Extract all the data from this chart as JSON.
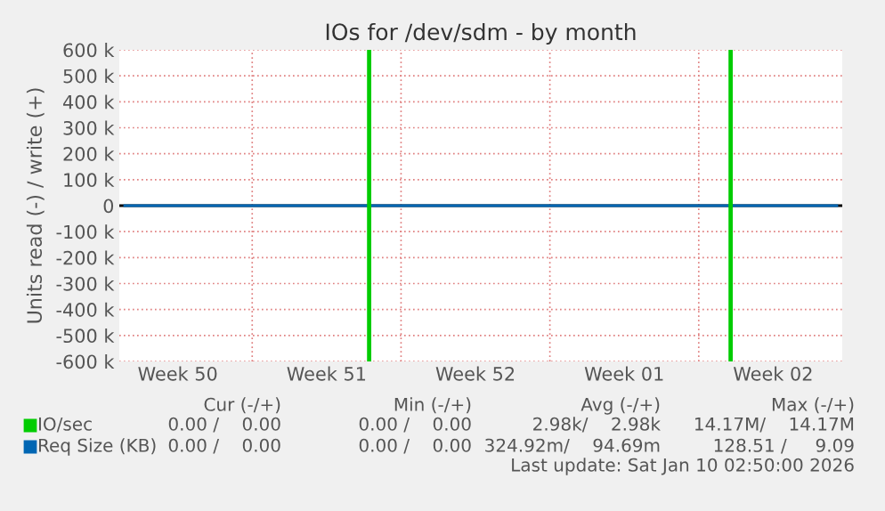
{
  "chart_data": {
    "type": "line",
    "title": "IOs for /dev/sdm - by month",
    "ylabel": "Units read (-) / write (+)",
    "categories": [
      null,
      null,
      null,
      null,
      null,
      "Week 50",
      null,
      null,
      null,
      null,
      null,
      null,
      null,
      null,
      null,
      null,
      null,
      null,
      null,
      "Week 51",
      null,
      null,
      null,
      null,
      null,
      null,
      null,
      null,
      null,
      null,
      null,
      null,
      null,
      "Week 52",
      null,
      null,
      null,
      null,
      null,
      null,
      null,
      null,
      null,
      null,
      null,
      null,
      null,
      "Week 01",
      null,
      null,
      null,
      null,
      null,
      null,
      null,
      null,
      null,
      null,
      null,
      null,
      null,
      "Week 02",
      null,
      null,
      null,
      null,
      null,
      null
    ],
    "ylim": [
      -600000,
      600000
    ],
    "yticks": [
      {
        "value": -600000,
        "label": "-600 k"
      },
      {
        "value": -500000,
        "label": "-500 k"
      },
      {
        "value": -400000,
        "label": "-400 k"
      },
      {
        "value": -300000,
        "label": "-300 k"
      },
      {
        "value": -200000,
        "label": "-200 k"
      },
      {
        "value": -100000,
        "label": "-100 k"
      },
      0,
      {
        "value": 100000,
        "label": "100 k"
      },
      {
        "value": 200000,
        "label": "200 k"
      },
      {
        "value": 300000,
        "label": "300 k"
      },
      {
        "value": 400000,
        "label": "400 k"
      },
      {
        "value": 500000,
        "label": "500 k"
      },
      {
        "value": 600000,
        "label": "600 k"
      }
    ],
    "grid": true,
    "legend": "bottom",
    "series": [
      {
        "name": "IO/sec",
        "type": "bar",
        "color": "#00cc00",
        "values": [
          null,
          null,
          null,
          null,
          null,
          null,
          null,
          null,
          null,
          null,
          null,
          null,
          null,
          null,
          null,
          null,
          null,
          null,
          null,
          null,
          null,
          null,
          null,
          600000,
          null,
          null,
          null,
          null,
          null,
          null,
          null,
          null,
          null,
          null,
          null,
          null,
          null,
          null,
          null,
          null,
          null,
          null,
          null,
          null,
          null,
          null,
          null,
          null,
          null,
          null,
          null,
          null,
          null,
          null,
          null,
          null,
          null,
          600000,
          null,
          null,
          null,
          null,
          null,
          null,
          null,
          null,
          null,
          null
        ]
      },
      {
        "type": "bar",
        "color": "#00cc00",
        "values": [
          null,
          null,
          null,
          null,
          null,
          null,
          null,
          null,
          null,
          null,
          null,
          null,
          null,
          null,
          null,
          null,
          null,
          null,
          null,
          null,
          null,
          null,
          null,
          -600000,
          null,
          null,
          null,
          null,
          null,
          null,
          null,
          null,
          null,
          null,
          null,
          null,
          null,
          null,
          null,
          null,
          null,
          null,
          null,
          null,
          null,
          null,
          null,
          null,
          null,
          null,
          null,
          null,
          null,
          null,
          null,
          null,
          null,
          -600000,
          null,
          null,
          null,
          null,
          null,
          null,
          null,
          null,
          null,
          null
        ]
      },
      {
        "name": "Req Size (KB)",
        "color": "#0066b3",
        "values": [
          0,
          0,
          0,
          0,
          0,
          0,
          0,
          0,
          0,
          0,
          0,
          0,
          0,
          0,
          0,
          0,
          0,
          0,
          0,
          0,
          0,
          0,
          0,
          0,
          0,
          0,
          0,
          0,
          0,
          0,
          0,
          0,
          0,
          0,
          0,
          0,
          0,
          0,
          0,
          0,
          0,
          0,
          0,
          0,
          0,
          0,
          0,
          0,
          0,
          0,
          0,
          0,
          0,
          0,
          0,
          0,
          0,
          0,
          0,
          0,
          0,
          0,
          0,
          0,
          0,
          0,
          0,
          0
        ]
      }
    ],
    "annotations": [
      "Cur (-/+)",
      "Min (-/+)",
      "Avg (-/+)",
      "Max (-/+)",
      "0.00 /    0.00",
      "0.00 /    0.00",
      "2.98k/    2.98k",
      "14.17M/    14.17M",
      "0.00 /    0.00",
      "0.00 /    0.00",
      "324.92m/    94.69m",
      "128.51 /     9.09",
      "Last update: Sat Jan 10 02:50:00 2026"
    ]
  }
}
